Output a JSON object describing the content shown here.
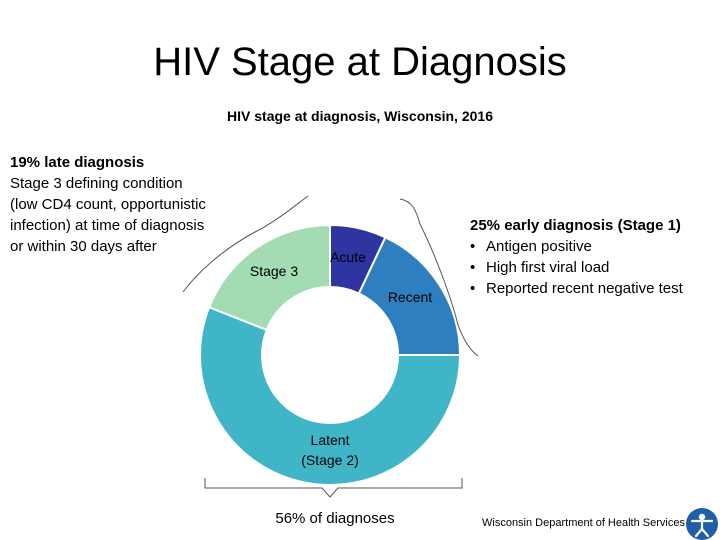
{
  "slide": {
    "title": "HIV Stage at Diagnosis"
  },
  "annotations": {
    "late": {
      "heading": "19% late diagnosis",
      "lines": [
        "Stage 3 defining condition",
        "(low CD4 count, opportunistic",
        "infection) at time of diagnosis",
        "or within 30 days after"
      ]
    },
    "early": {
      "heading": "25% early diagnosis (Stage 1)",
      "bullets": [
        "Antigen positive",
        "High first viral load",
        "Reported recent negative test"
      ]
    },
    "latent": {
      "text": "56% of diagnoses"
    }
  },
  "footer": {
    "org": "Wisconsin Department of Health Services",
    "logo_icon": "person-figure-logo-icon"
  },
  "chart_data": {
    "type": "pie",
    "donut": true,
    "title": "HIV stage at diagnosis, Wisconsin, 2016",
    "slices": [
      {
        "label": "Acute",
        "value": 7,
        "color": "#2e35a0"
      },
      {
        "label": "Recent",
        "value": 18,
        "color": "#2e7fc0"
      },
      {
        "label": "Latent\n(Stage 2)",
        "value": 56,
        "color": "#40b5c8"
      },
      {
        "label": "Stage 3",
        "value": 19,
        "color": "#a3dcb3"
      }
    ]
  }
}
